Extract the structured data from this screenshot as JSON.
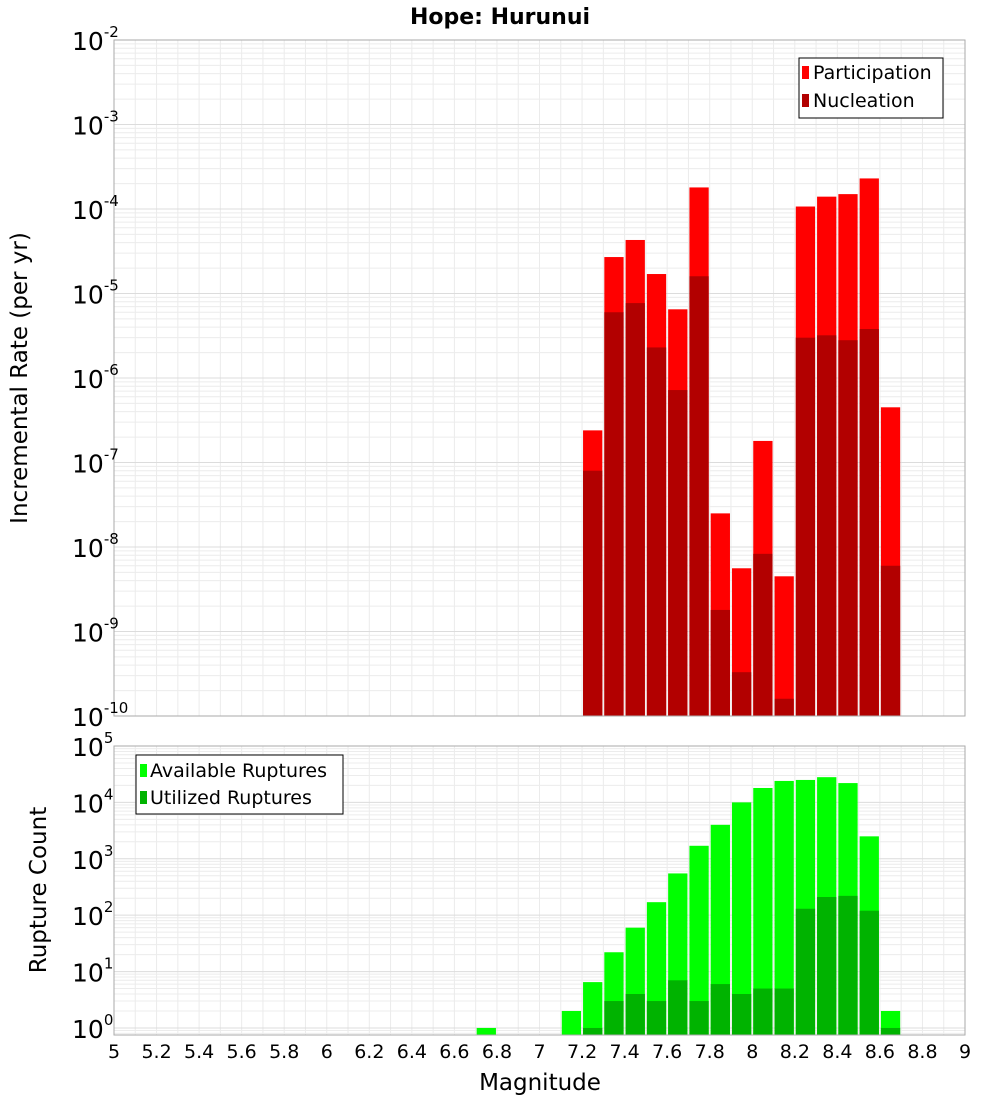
{
  "chart_data": [
    {
      "type": "bar",
      "title": "Hope: Hurunui",
      "xlabel": "",
      "ylabel": "Incremental Rate (per yr)",
      "yscale": "log",
      "ylim": [
        1e-10,
        0.01
      ],
      "xlim": [
        5,
        9
      ],
      "grid": true,
      "legend_position": "top-right",
      "x": [
        7.25,
        7.35,
        7.45,
        7.55,
        7.65,
        7.75,
        7.85,
        7.95,
        8.05,
        8.15,
        8.25,
        8.35,
        8.45,
        8.55,
        8.65
      ],
      "y_ticks": [
        {
          "base": "10",
          "exp": "-2"
        },
        {
          "base": "10",
          "exp": "-3"
        },
        {
          "base": "10",
          "exp": "-4"
        },
        {
          "base": "10",
          "exp": "-5"
        },
        {
          "base": "10",
          "exp": "-6"
        },
        {
          "base": "10",
          "exp": "-7"
        },
        {
          "base": "10",
          "exp": "-8"
        },
        {
          "base": "10",
          "exp": "-9"
        },
        {
          "base": "10",
          "exp": "-10"
        }
      ],
      "series": [
        {
          "name": "Participation",
          "color": "#ff0000",
          "values": [
            2.4e-07,
            2.7e-05,
            4.3e-05,
            1.7e-05,
            6.5e-06,
            0.00018,
            2.5e-08,
            5.6e-09,
            1.8e-07,
            4.5e-09,
            0.000107,
            0.00014,
            0.00015,
            0.00023,
            4.5e-07
          ]
        },
        {
          "name": "Nucleation",
          "color": "#b20000",
          "values": [
            8e-08,
            6e-06,
            7.7e-06,
            2.3e-06,
            7.2e-07,
            1.6e-05,
            1.8e-09,
            3.3e-10,
            8.3e-09,
            1.6e-10,
            3e-06,
            3.2e-06,
            2.8e-06,
            3.8e-06,
            6e-09
          ]
        }
      ]
    },
    {
      "type": "bar",
      "title": "",
      "xlabel": "Magnitude",
      "ylabel": "Rupture Count",
      "yscale": "log",
      "ylim": [
        0.75,
        100000.0
      ],
      "xlim": [
        5,
        9
      ],
      "grid": true,
      "legend_position": "top-left",
      "x_ticks": [
        "5",
        "5.2",
        "5.4",
        "5.6",
        "5.8",
        "6",
        "6.2",
        "6.4",
        "6.6",
        "6.8",
        "7",
        "7.2",
        "7.4",
        "7.6",
        "7.8",
        "8",
        "8.2",
        "8.4",
        "8.6",
        "8.8",
        "9"
      ],
      "y_ticks": [
        {
          "base": "10",
          "exp": "5"
        },
        {
          "base": "10",
          "exp": "4"
        },
        {
          "base": "10",
          "exp": "3"
        },
        {
          "base": "10",
          "exp": "2"
        },
        {
          "base": "10",
          "exp": "1"
        },
        {
          "base": "10",
          "exp": "0"
        }
      ],
      "series": [
        {
          "name": "Available Ruptures",
          "color": "#00ff00",
          "x": [
            6.75,
            7.15,
            7.25,
            7.35,
            7.45,
            7.55,
            7.65,
            7.75,
            7.85,
            7.95,
            8.05,
            8.15,
            8.25,
            8.35,
            8.45,
            8.55,
            8.65
          ],
          "values": [
            1,
            2,
            6.5,
            22,
            60,
            170,
            550,
            1700,
            4000,
            10000,
            18000,
            24000,
            25000,
            28000,
            22000,
            2500,
            2
          ]
        },
        {
          "name": "Utilized Ruptures",
          "color": "#00b300",
          "x": [
            7.25,
            7.35,
            7.45,
            7.55,
            7.65,
            7.75,
            7.85,
            7.95,
            8.05,
            8.15,
            8.25,
            8.35,
            8.45,
            8.55,
            8.65
          ],
          "values": [
            1,
            3,
            4,
            3,
            7,
            3,
            6,
            4,
            5,
            5,
            130,
            210,
            220,
            120,
            1
          ]
        }
      ]
    }
  ]
}
